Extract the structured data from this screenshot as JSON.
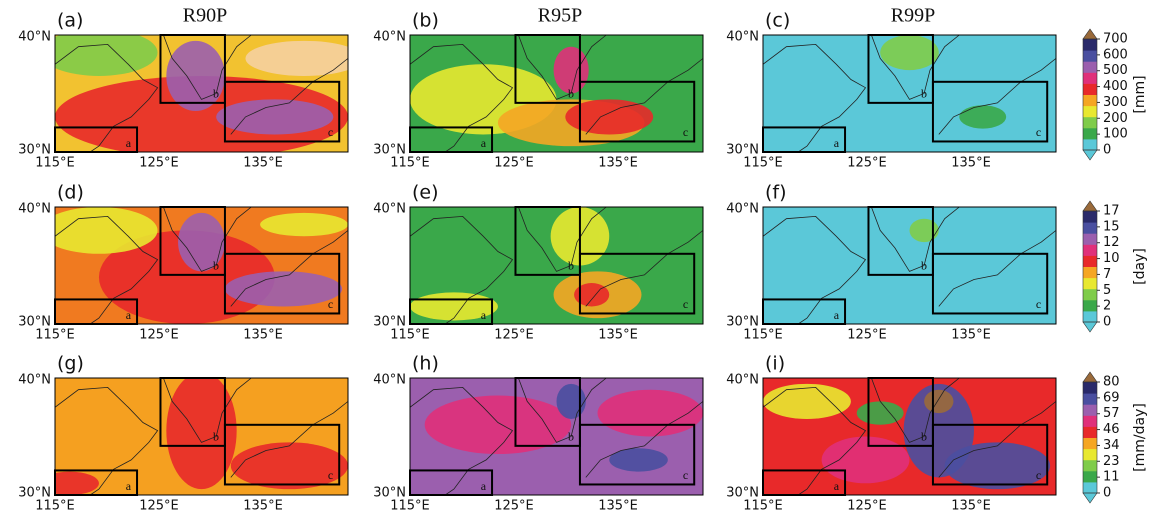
{
  "columns": [
    "R90P",
    "R95P",
    "R99P"
  ],
  "panels": [
    {
      "label": "(a)"
    },
    {
      "label": "(b)"
    },
    {
      "label": "(c)"
    },
    {
      "label": "(d)"
    },
    {
      "label": "(e)"
    },
    {
      "label": "(f)"
    },
    {
      "label": "(g)"
    },
    {
      "label": "(h)"
    },
    {
      "label": "(i)"
    }
  ],
  "lat_ticks": [
    "30°N",
    "40°N"
  ],
  "lon_ticks": [
    "115°E",
    "125°E",
    "135°E"
  ],
  "box_labels": [
    "a",
    "b",
    "c"
  ],
  "colorbars": [
    {
      "unit": "[mm]",
      "ticks": [
        0,
        100,
        200,
        300,
        400,
        500,
        600,
        700
      ]
    },
    {
      "unit": "[day]",
      "ticks": [
        0,
        2,
        5,
        7,
        10,
        12,
        15,
        17
      ]
    },
    {
      "unit": "[mm/day]",
      "ticks": [
        0,
        11,
        23,
        34,
        46,
        57,
        69,
        80
      ]
    }
  ]
}
